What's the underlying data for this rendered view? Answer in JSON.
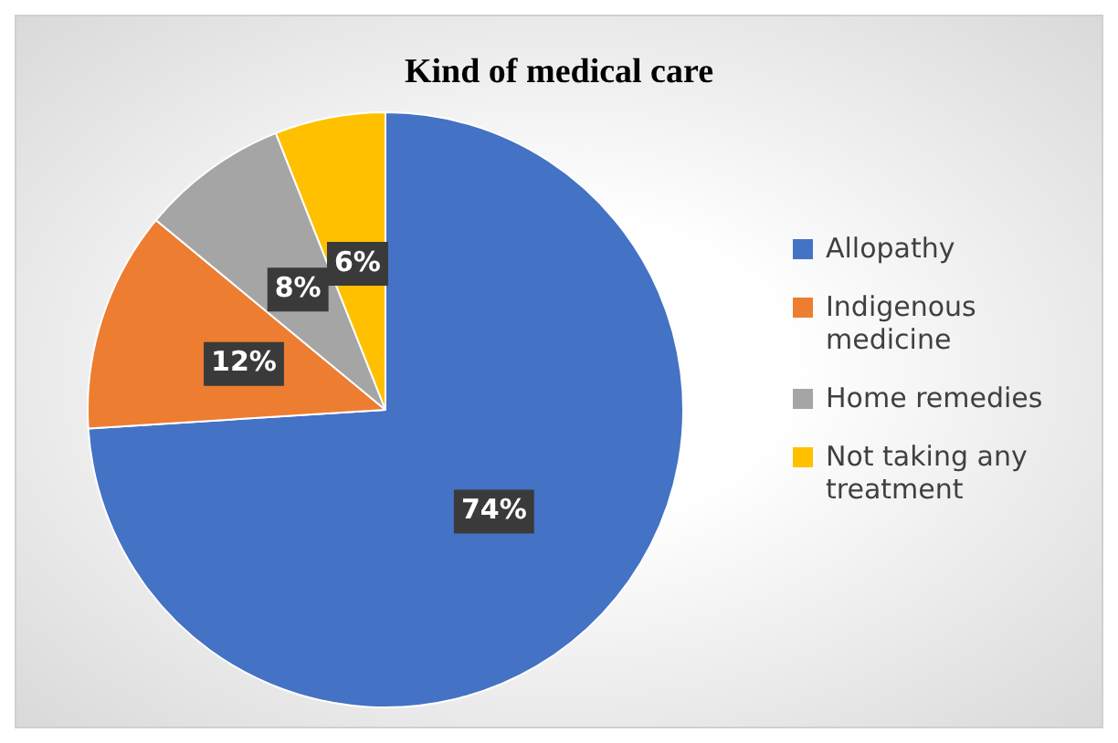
{
  "chart_data": {
    "type": "pie",
    "title": "Kind of medical care",
    "categories": [
      "Allopathy",
      "Indigenous medicine",
      "Home remedies",
      "Not taking any treatment"
    ],
    "values": [
      74,
      12,
      8,
      6
    ],
    "colors": [
      "#4472c4",
      "#ed7d31",
      "#a5a5a5",
      "#ffc000"
    ],
    "value_labels": [
      "74%",
      "12%",
      "8%",
      "6%"
    ],
    "legend": "right"
  }
}
